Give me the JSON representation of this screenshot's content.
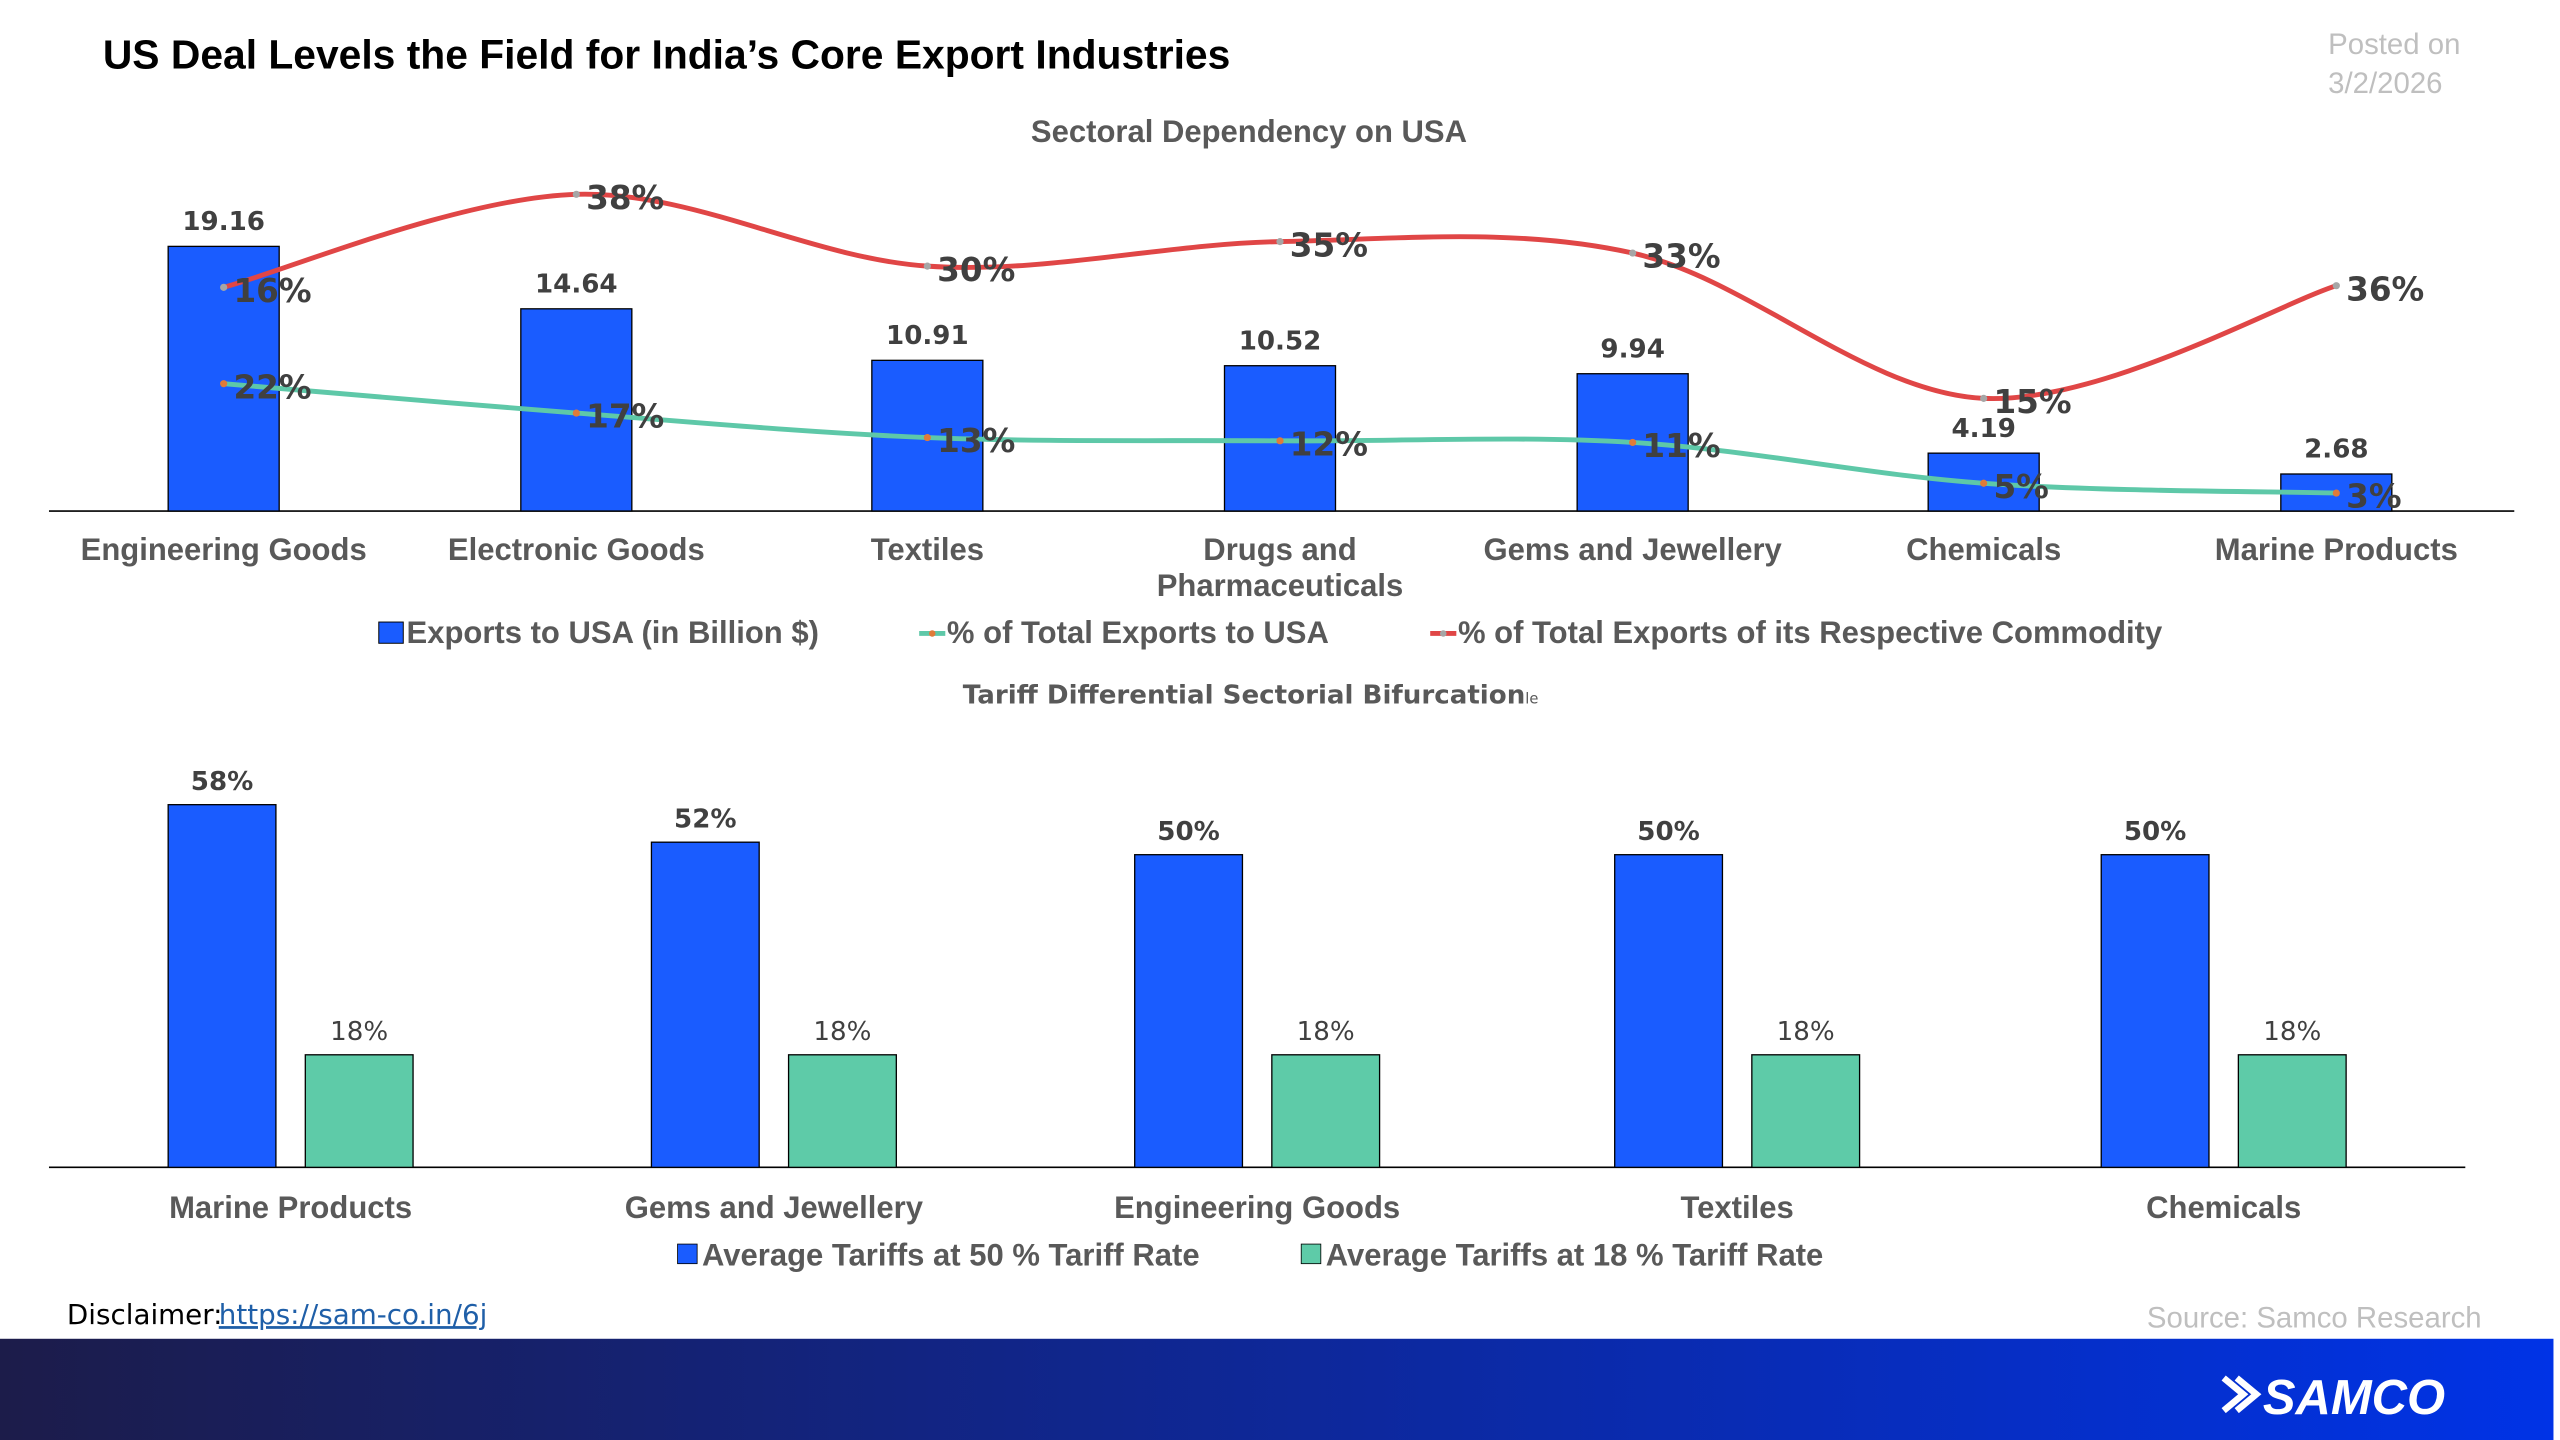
{
  "header": {
    "title": "US Deal Levels the Field for India’s Core Export Industries",
    "posted_label": "Posted on",
    "posted_date": "3/2/2026"
  },
  "chart_data": [
    {
      "type": "bar+line",
      "title": "Sectoral Dependency on USA",
      "categories": [
        "Engineering Goods",
        "Electronic Goods",
        "Textiles",
        "Drugs and Pharmaceuticals",
        "Gems and Jewellery",
        "Chemicals",
        "Marine Products"
      ],
      "category_lines": [
        [
          "Engineering Goods"
        ],
        [
          "Electronic Goods"
        ],
        [
          "Textiles"
        ],
        [
          "Drugs and",
          "Pharmaceuticals"
        ],
        [
          "Gems and Jewellery"
        ],
        [
          "Chemicals"
        ],
        [
          "Marine Products"
        ]
      ],
      "series": [
        {
          "name": "Exports to USA (in Billion $)",
          "kind": "bar",
          "color": "#1a5cff",
          "values": [
            19.16,
            14.64,
            10.91,
            10.52,
            9.94,
            4.19,
            2.68
          ],
          "labels": [
            "19.16",
            "14.64",
            "10.91",
            "10.52",
            "9.94",
            "4.19",
            "2.68"
          ]
        },
        {
          "name": "% of Total Exports to USA",
          "kind": "line",
          "color": "#5ec8a8",
          "marker_color": "#e07b39",
          "values": [
            22,
            17,
            13,
            12,
            11,
            5,
            3
          ],
          "labels": [
            "22%",
            "17%",
            "13%",
            "12%",
            "11%",
            "5%",
            "3%"
          ]
        },
        {
          "name": "% of Total Exports of its Respective Commodity",
          "kind": "line",
          "color": "#e04646",
          "marker_color": "#a6a6a6",
          "values": [
            16,
            38,
            30,
            35,
            33,
            15,
            36
          ],
          "labels": [
            "16%",
            "38%",
            "30%",
            "35%",
            "33%",
            "15%",
            "36%"
          ]
        }
      ],
      "legend": "bottom",
      "grid": false
    },
    {
      "type": "bar",
      "title": "Tariff Differential Sectorial Bifurcation",
      "title_suffix": "le",
      "categories": [
        "Marine Products",
        "Gems and Jewellery",
        "Engineering Goods",
        "Textiles",
        "Chemicals"
      ],
      "series": [
        {
          "name": "Average Tariffs at 50 % Tariff Rate",
          "color": "#1a5cff",
          "values": [
            58,
            52,
            50,
            50,
            50
          ],
          "labels": [
            "58%",
            "52%",
            "50%",
            "50%",
            "50%"
          ]
        },
        {
          "name": "Average Tariffs at 18 % Tariff Rate",
          "color": "#5ecba8",
          "values": [
            18,
            18,
            18,
            18,
            18
          ],
          "labels": [
            "18%",
            "18%",
            "18%",
            "18%",
            "18%"
          ]
        }
      ],
      "legend": "bottom",
      "grid": false
    }
  ],
  "footer": {
    "disclaimer_label": "Disclaimer:",
    "disclaimer_link": "https://sam-co.in/6j",
    "source": "Source: Samco Research",
    "logo": "SAMCO",
    "band_colors": [
      "#1c1c4a",
      "#0033e6"
    ]
  }
}
